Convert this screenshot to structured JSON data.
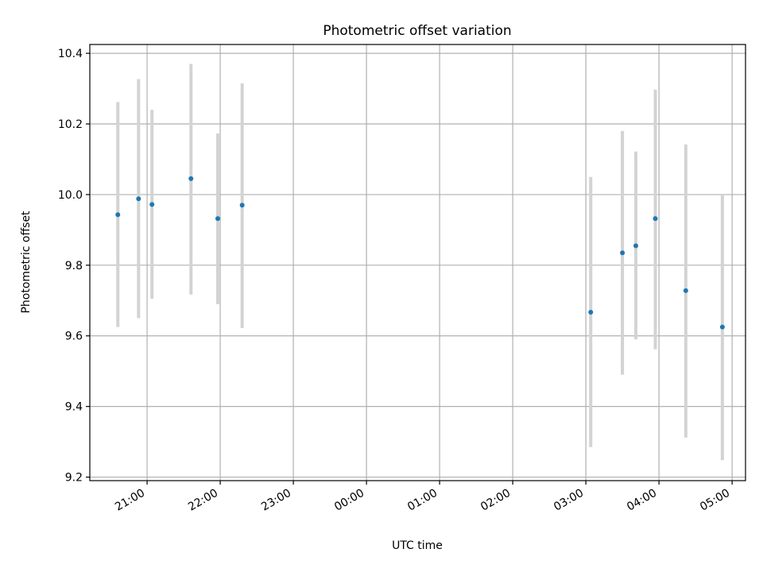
{
  "chart_data": {
    "type": "scatter",
    "title": "Photometric offset variation",
    "xlabel": "UTC time",
    "ylabel": "Photometric offset",
    "x_tick_labels": [
      "21:00",
      "22:00",
      "23:00",
      "00:00",
      "01:00",
      "02:00",
      "03:00",
      "04:00",
      "05:00"
    ],
    "x_tick_hours": [
      21,
      22,
      23,
      24,
      25,
      26,
      27,
      28,
      29
    ],
    "y_ticks": [
      "9.2",
      "9.4",
      "9.6",
      "9.8",
      "10.0",
      "10.2",
      "10.4"
    ],
    "xlim": [
      "20:13",
      "05:11"
    ],
    "ylim": [
      9.19,
      10.425
    ],
    "grid": true,
    "colors": {
      "point": "#1f77b4",
      "errorbar": "#d3d3d3",
      "grid": "#b0b0b0"
    },
    "series": [
      {
        "points": [
          {
            "x": "20:36",
            "y": 9.943,
            "low": 9.625,
            "high": 10.262
          },
          {
            "x": "20:53",
            "y": 9.988,
            "low": 9.65,
            "high": 10.327
          },
          {
            "x": "21:04",
            "y": 9.972,
            "low": 9.705,
            "high": 10.24
          },
          {
            "x": "21:36",
            "y": 10.045,
            "low": 9.717,
            "high": 10.37
          },
          {
            "x": "21:58",
            "y": 9.932,
            "low": 9.69,
            "high": 10.173
          },
          {
            "x": "22:18",
            "y": 9.97,
            "low": 9.622,
            "high": 10.315
          },
          {
            "x": "03:04",
            "y": 9.667,
            "low": 9.285,
            "high": 10.05
          },
          {
            "x": "03:30",
            "y": 9.835,
            "low": 9.49,
            "high": 10.18
          },
          {
            "x": "03:41",
            "y": 9.855,
            "low": 9.59,
            "high": 10.122
          },
          {
            "x": "03:57",
            "y": 9.932,
            "low": 9.562,
            "high": 10.297
          },
          {
            "x": "04:22",
            "y": 9.728,
            "low": 9.312,
            "high": 10.142
          },
          {
            "x": "04:52",
            "y": 9.625,
            "low": 9.248,
            "high": 10.0
          }
        ]
      }
    ]
  }
}
